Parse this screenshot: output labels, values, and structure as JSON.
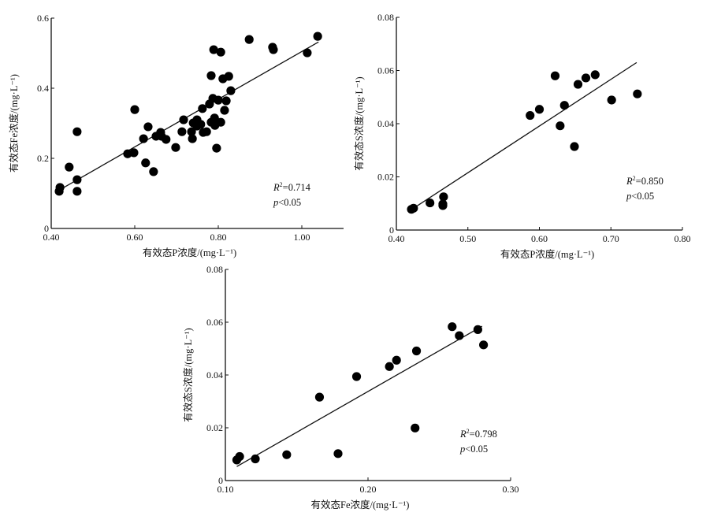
{
  "chart_data": [
    {
      "type": "scatter",
      "title": "",
      "xlabel": "有效态P浓度/(mg·L⁻¹)",
      "ylabel": "有效态Fe浓度/(mg·L⁻¹)",
      "xlim": [
        0.4,
        1.1
      ],
      "ylim": [
        0,
        0.6
      ],
      "xticks": [
        0.4,
        0.6,
        0.8,
        1.0
      ],
      "xtick_labels": [
        "0.40",
        "0.60",
        "0.80",
        "1.00"
      ],
      "yticks": [
        0,
        0.2,
        0.4,
        0.6
      ],
      "ytick_labels": [
        "0",
        "0.2",
        "0.4",
        "0.6"
      ],
      "grid": false,
      "points": [
        [
          0.419,
          0.106
        ],
        [
          0.421,
          0.117
        ],
        [
          0.443,
          0.175
        ],
        [
          0.462,
          0.106
        ],
        [
          0.462,
          0.139
        ],
        [
          0.462,
          0.276
        ],
        [
          0.583,
          0.213
        ],
        [
          0.598,
          0.216
        ],
        [
          0.6,
          0.339
        ],
        [
          0.621,
          0.256
        ],
        [
          0.626,
          0.187
        ],
        [
          0.632,
          0.29
        ],
        [
          0.645,
          0.162
        ],
        [
          0.651,
          0.263
        ],
        [
          0.662,
          0.274
        ],
        [
          0.664,
          0.263
        ],
        [
          0.675,
          0.254
        ],
        [
          0.698,
          0.231
        ],
        [
          0.713,
          0.276
        ],
        [
          0.717,
          0.31
        ],
        [
          0.736,
          0.276
        ],
        [
          0.738,
          0.256
        ],
        [
          0.74,
          0.301
        ],
        [
          0.749,
          0.31
        ],
        [
          0.749,
          0.292
        ],
        [
          0.758,
          0.297
        ],
        [
          0.762,
          0.342
        ],
        [
          0.764,
          0.274
        ],
        [
          0.772,
          0.276
        ],
        [
          0.779,
          0.355
        ],
        [
          0.783,
          0.303
        ],
        [
          0.783,
          0.436
        ],
        [
          0.787,
          0.371
        ],
        [
          0.789,
          0.51
        ],
        [
          0.791,
          0.315
        ],
        [
          0.792,
          0.294
        ],
        [
          0.796,
          0.229
        ],
        [
          0.8,
          0.366
        ],
        [
          0.806,
          0.503
        ],
        [
          0.806,
          0.303
        ],
        [
          0.811,
          0.427
        ],
        [
          0.815,
          0.337
        ],
        [
          0.819,
          0.364
        ],
        [
          0.825,
          0.434
        ],
        [
          0.83,
          0.393
        ],
        [
          0.874,
          0.539
        ],
        [
          0.93,
          0.517
        ],
        [
          0.932,
          0.51
        ],
        [
          1.013,
          0.501
        ],
        [
          1.038,
          0.548
        ]
      ],
      "fit_line": [
        [
          0.42,
          0.11
        ],
        [
          1.04,
          0.532
        ]
      ],
      "annotation": {
        "r2_symbol": "R",
        "r2_sup": "2",
        "r2_value": "=0.714",
        "p_symbol": "p",
        "p_value": "<0.05"
      }
    },
    {
      "type": "scatter",
      "title": "",
      "xlabel": "有效态P浓度/(mg·L⁻¹)",
      "ylabel": "有效态S浓度/(mg·L⁻¹)",
      "xlim": [
        0.4,
        0.8
      ],
      "ylim": [
        0,
        0.08
      ],
      "xticks": [
        0.4,
        0.5,
        0.6,
        0.7,
        0.8
      ],
      "xtick_labels": [
        "0.40",
        "0.50",
        "0.60",
        "0.70",
        "0.80"
      ],
      "yticks": [
        0,
        0.02,
        0.04,
        0.06,
        0.08
      ],
      "ytick_labels": [
        "0",
        "0.02",
        "0.04",
        "0.06",
        "0.08"
      ],
      "grid": false,
      "points": [
        [
          0.421,
          0.0078
        ],
        [
          0.424,
          0.0082
        ],
        [
          0.447,
          0.0102
        ],
        [
          0.466,
          0.0125
        ],
        [
          0.465,
          0.0092
        ],
        [
          0.465,
          0.0098
        ],
        [
          0.587,
          0.0431
        ],
        [
          0.6,
          0.0454
        ],
        [
          0.622,
          0.058
        ],
        [
          0.629,
          0.0392
        ],
        [
          0.635,
          0.0469
        ],
        [
          0.649,
          0.0314
        ],
        [
          0.654,
          0.0548
        ],
        [
          0.665,
          0.0572
        ],
        [
          0.678,
          0.0584
        ],
        [
          0.701,
          0.0489
        ],
        [
          0.737,
          0.0512
        ]
      ],
      "fit_line": [
        [
          0.42,
          0.0075
        ],
        [
          0.736,
          0.063
        ]
      ],
      "annotation": {
        "r2_symbol": "R",
        "r2_sup": "2",
        "r2_value": "=0.850",
        "p_symbol": "p",
        "p_value": "<0.05"
      }
    },
    {
      "type": "scatter",
      "title": "",
      "xlabel": "有效态Fe浓度/(mg·L⁻¹)",
      "ylabel": "有效态S浓度/(mg·L⁻¹)",
      "xlim": [
        0.1,
        0.3
      ],
      "ylim": [
        0,
        0.08
      ],
      "xticks": [
        0.1,
        0.2,
        0.3
      ],
      "xtick_labels": [
        "0.10",
        "0.20",
        "0.30"
      ],
      "yticks": [
        0,
        0.02,
        0.04,
        0.06,
        0.08
      ],
      "ytick_labels": [
        "0",
        "0.02",
        "0.04",
        "0.06",
        "0.08"
      ],
      "grid": false,
      "points": [
        [
          0.108,
          0.0078
        ],
        [
          0.11,
          0.0091
        ],
        [
          0.121,
          0.0082
        ],
        [
          0.143,
          0.0098
        ],
        [
          0.166,
          0.0316
        ],
        [
          0.179,
          0.0102
        ],
        [
          0.192,
          0.0394
        ],
        [
          0.215,
          0.0432
        ],
        [
          0.22,
          0.0456
        ],
        [
          0.233,
          0.0199
        ],
        [
          0.234,
          0.0491
        ],
        [
          0.259,
          0.0583
        ],
        [
          0.264,
          0.0549
        ],
        [
          0.277,
          0.0572
        ],
        [
          0.281,
          0.0514
        ]
      ],
      "fit_line": [
        [
          0.108,
          0.0053
        ],
        [
          0.28,
          0.0585
        ]
      ],
      "annotation": {
        "r2_symbol": "R",
        "r2_sup": "2",
        "r2_value": "=0.798",
        "p_symbol": "p",
        "p_value": "<0.05"
      }
    }
  ]
}
